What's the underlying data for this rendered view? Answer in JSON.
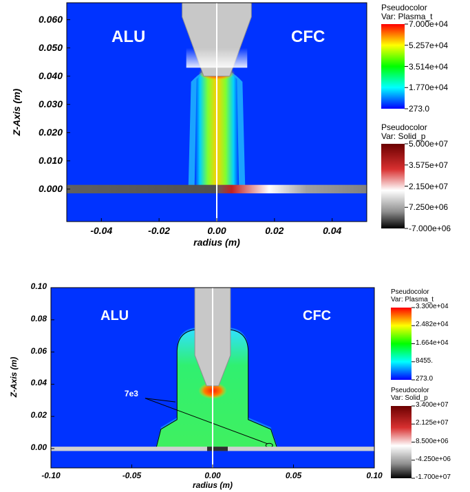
{
  "chart_data": [
    {
      "type": "heatmap",
      "xlabel": "radius (m)",
      "ylabel": "Z-Axis (m)",
      "xlim": [
        -0.052,
        0.052
      ],
      "ylim": [
        -0.0115,
        0.066
      ],
      "x_ticks": [
        "-0.04",
        "-0.02",
        "0.00",
        "0.02",
        "0.04"
      ],
      "x_tick_values": [
        -0.04,
        -0.02,
        0.0,
        0.02,
        0.04
      ],
      "y_ticks": [
        "0.000",
        "0.010",
        "0.020",
        "0.030",
        "0.040",
        "0.050",
        "0.060"
      ],
      "y_tick_values": [
        0.0,
        0.01,
        0.02,
        0.03,
        0.04,
        0.05,
        0.06
      ],
      "annotations": [
        "ALU",
        "CFC"
      ],
      "legends": [
        {
          "title": "Pseudocolor",
          "var": "Var: Plasma_t",
          "max": "7.000e+04",
          "labels": [
            "7.000e+04",
            "5.257e+04",
            "3.514e+04",
            "1.770e+04",
            "273.0"
          ],
          "colors": [
            "#ff0000",
            "#ffff00",
            "#00ff00",
            "#00ffff",
            "#0000ff"
          ]
        },
        {
          "title": "Pseudocolor",
          "var": "Var: Solid_p",
          "max": "5.000e+07",
          "labels": [
            "5.000e+07",
            "3.575e+07",
            "2.150e+07",
            "7.250e+06",
            "-7.000e+06"
          ],
          "colors": [
            "#6b0000",
            "#d83030",
            "#ffffff",
            "#909090",
            "#000000"
          ]
        }
      ]
    },
    {
      "type": "heatmap",
      "xlabel": "radius (m)",
      "ylabel": "Z-Axis (m)",
      "xlim": [
        -0.1,
        0.1
      ],
      "ylim": [
        -0.012,
        0.1
      ],
      "x_ticks": [
        "-0.10",
        "-0.05",
        "0.00",
        "0.05",
        "0.10"
      ],
      "x_tick_values": [
        -0.1,
        -0.05,
        0.0,
        0.05,
        0.1
      ],
      "y_ticks": [
        "0.00",
        "0.02",
        "0.04",
        "0.06",
        "0.08",
        "0.10"
      ],
      "y_tick_values": [
        0.0,
        0.02,
        0.04,
        0.06,
        0.08,
        0.1
      ],
      "annotations": [
        "ALU",
        "CFC",
        "7e3"
      ],
      "legends": [
        {
          "title": "Pseudocolor",
          "var": "Var: Plasma_t",
          "max": "3.300e+04",
          "labels": [
            "3.300e+04",
            "2.482e+04",
            "1.664e+04",
            "8455.",
            "273.0"
          ],
          "colors": [
            "#ff0000",
            "#ffff00",
            "#00ff00",
            "#00ffff",
            "#0000ff"
          ]
        },
        {
          "title": "Pseudocolor",
          "var": "Var: Solid_p",
          "max": "3.400e+07",
          "labels": [
            "3.400e+07",
            "2.125e+07",
            "8.500e+06",
            "-4.250e+06",
            "-1.700e+07"
          ],
          "colors": [
            "#6b0000",
            "#d83030",
            "#ffffff",
            "#909090",
            "#000000"
          ]
        }
      ]
    }
  ]
}
